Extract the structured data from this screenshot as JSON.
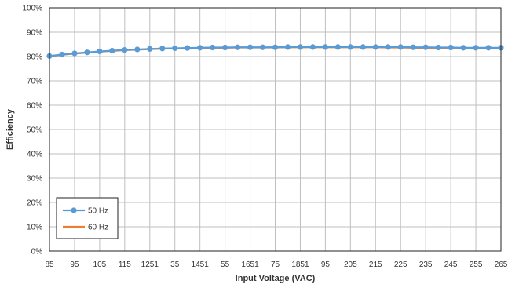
{
  "chart_data": {
    "type": "line",
    "xlabel": "Input Voltage (VAC)",
    "ylabel": "Efficiency",
    "x_tick_labels": [
      "85",
      "95",
      "105",
      "115",
      "1251",
      "35",
      "1451",
      "55",
      "1651",
      "75",
      "1851",
      "95",
      "205",
      "215",
      "225",
      "235",
      "245",
      "255",
      "265"
    ],
    "y_tick_labels": [
      "0%",
      "10%",
      "20%",
      "30%",
      "40%",
      "50%",
      "60%",
      "70%",
      "80%",
      "90%",
      "100%"
    ],
    "xlim": [
      85,
      265
    ],
    "ylim": [
      0,
      1
    ],
    "grid": true,
    "legend_position": "bottom-left",
    "x": [
      85,
      90,
      95,
      100,
      105,
      110,
      115,
      120,
      125,
      130,
      135,
      140,
      145,
      150,
      155,
      160,
      165,
      170,
      175,
      180,
      185,
      190,
      195,
      200,
      205,
      210,
      215,
      220,
      225,
      230,
      235,
      240,
      245,
      250,
      255,
      260,
      265
    ],
    "series": [
      {
        "name": "50 Hz",
        "color": "#5B9BD5",
        "marker": "circle",
        "values": [
          0.802,
          0.808,
          0.813,
          0.817,
          0.821,
          0.824,
          0.827,
          0.829,
          0.831,
          0.833,
          0.834,
          0.835,
          0.836,
          0.837,
          0.837,
          0.838,
          0.838,
          0.838,
          0.838,
          0.839,
          0.839,
          0.839,
          0.839,
          0.839,
          0.839,
          0.839,
          0.839,
          0.839,
          0.839,
          0.838,
          0.838,
          0.837,
          0.837,
          0.836,
          0.836,
          0.836,
          0.836
        ]
      },
      {
        "name": "60 Hz",
        "color": "#ED7D31",
        "marker": "none",
        "values": [
          0.801,
          0.807,
          0.812,
          0.816,
          0.82,
          0.823,
          0.826,
          0.828,
          0.83,
          0.832,
          0.833,
          0.834,
          0.835,
          0.836,
          0.836,
          0.837,
          0.837,
          0.837,
          0.837,
          0.838,
          0.838,
          0.838,
          0.838,
          0.838,
          0.838,
          0.838,
          0.838,
          0.837,
          0.837,
          0.836,
          0.836,
          0.835,
          0.834,
          0.834,
          0.833,
          0.833,
          0.833
        ]
      }
    ]
  }
}
